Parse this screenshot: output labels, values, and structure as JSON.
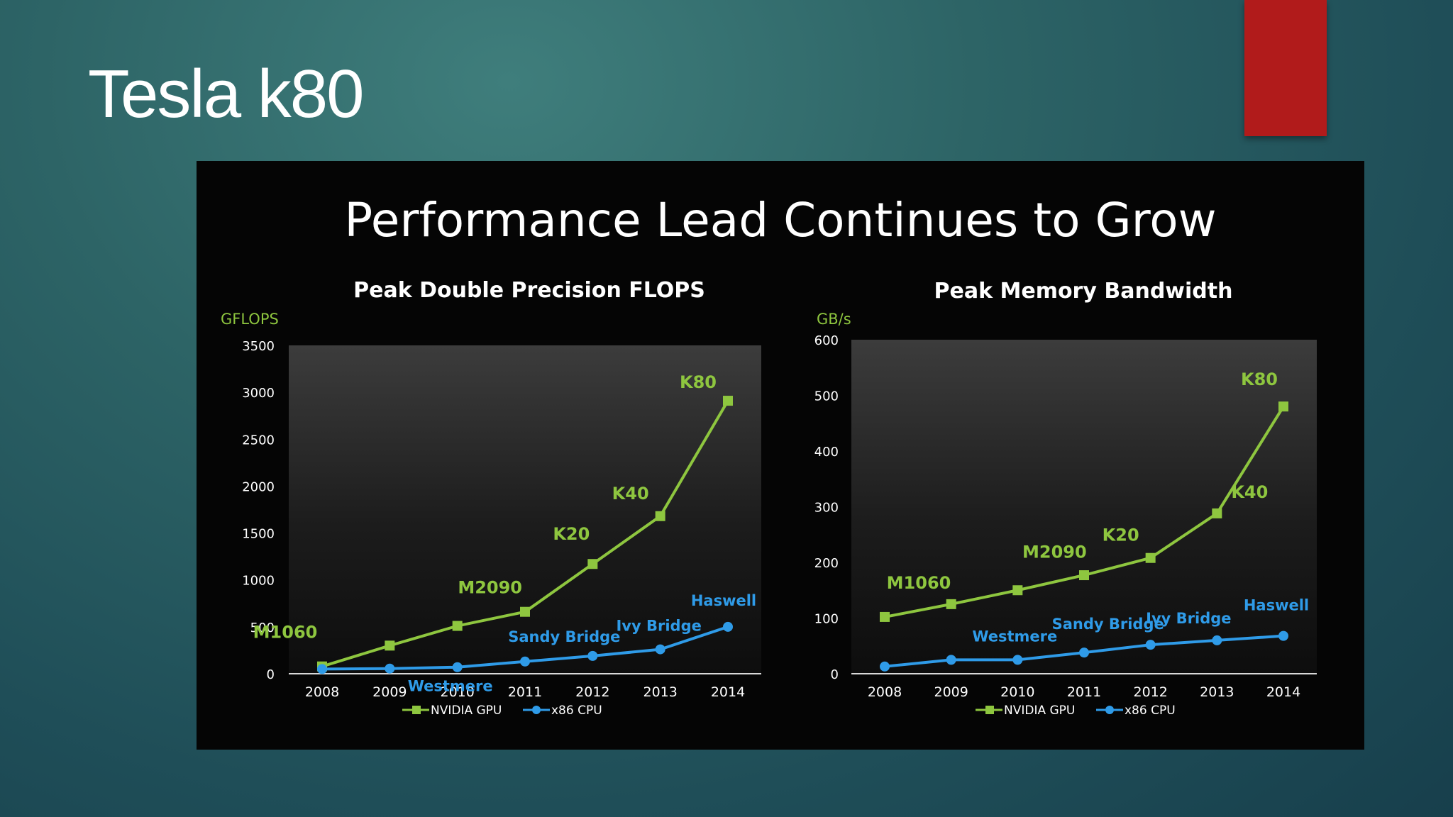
{
  "slide": {
    "title": "Tesla k80"
  },
  "panel": {
    "title": "Performance Lead Continues to Grow"
  },
  "colors": {
    "gpu": "#8ec63f",
    "cpu": "#2f9be8",
    "label_gpu": "#8ec63f",
    "label_cpu": "#2f9be8",
    "accent_tab": "#b11b1b"
  },
  "chart_data": [
    {
      "type": "line",
      "title": "Peak Double Precision FLOPS",
      "ylabel": "GFLOPS",
      "xlabel": "",
      "ylim": [
        0,
        3500
      ],
      "yticks": [
        0,
        500,
        1000,
        1500,
        2000,
        2500,
        3000,
        3500
      ],
      "categories": [
        "2008",
        "2009",
        "2010",
        "2011",
        "2012",
        "2013",
        "2014"
      ],
      "series": [
        {
          "name": "NVIDIA GPU",
          "key": "gpu",
          "values": [
            78,
            300,
            510,
            660,
            1170,
            1680,
            2910
          ]
        },
        {
          "name": "x86 CPU",
          "key": "cpu",
          "values": [
            50,
            55,
            70,
            130,
            190,
            260,
            500
          ]
        }
      ],
      "annotations": [
        {
          "text": "M1060",
          "series": "gpu",
          "index": 0
        },
        {
          "text": "M2090",
          "series": "gpu",
          "index": 2
        },
        {
          "text": "K20",
          "series": "gpu",
          "index": 4
        },
        {
          "text": "K40",
          "series": "gpu",
          "index": 5
        },
        {
          "text": "K80",
          "series": "gpu",
          "index": 6
        },
        {
          "text": "Westmere",
          "series": "cpu",
          "index": 2
        },
        {
          "text": "Sandy Bridge",
          "series": "cpu",
          "index": 4
        },
        {
          "text": "Ivy Bridge",
          "series": "cpu",
          "index": 5
        },
        {
          "text": "Haswell",
          "series": "cpu",
          "index": 6
        }
      ],
      "legend": [
        "NVIDIA GPU",
        "x86 CPU"
      ]
    },
    {
      "type": "line",
      "title": "Peak Memory Bandwidth",
      "ylabel": "GB/s",
      "xlabel": "",
      "ylim": [
        0,
        600
      ],
      "yticks": [
        0,
        100,
        200,
        300,
        400,
        500,
        600
      ],
      "categories": [
        "2008",
        "2009",
        "2010",
        "2011",
        "2012",
        "2013",
        "2014"
      ],
      "series": [
        {
          "name": "NVIDIA GPU",
          "key": "gpu",
          "values": [
            102,
            125,
            150,
            177,
            208,
            288,
            480
          ]
        },
        {
          "name": "x86 CPU",
          "key": "cpu",
          "values": [
            13,
            25,
            25,
            38,
            52,
            60,
            68
          ]
        }
      ],
      "annotations": [
        {
          "text": "M1060",
          "series": "gpu",
          "index": 0
        },
        {
          "text": "M2090",
          "series": "gpu",
          "index": 2
        },
        {
          "text": "K20",
          "series": "gpu",
          "index": 4
        },
        {
          "text": "K40",
          "series": "gpu",
          "index": 5
        },
        {
          "text": "K80",
          "series": "gpu",
          "index": 6
        },
        {
          "text": "Westmere",
          "series": "cpu",
          "index": 2
        },
        {
          "text": "Sandy Bridge",
          "series": "cpu",
          "index": 4
        },
        {
          "text": "Ivy Bridge",
          "series": "cpu",
          "index": 5
        },
        {
          "text": "Haswell",
          "series": "cpu",
          "index": 6
        }
      ],
      "legend": [
        "NVIDIA GPU",
        "x86 CPU"
      ]
    }
  ]
}
